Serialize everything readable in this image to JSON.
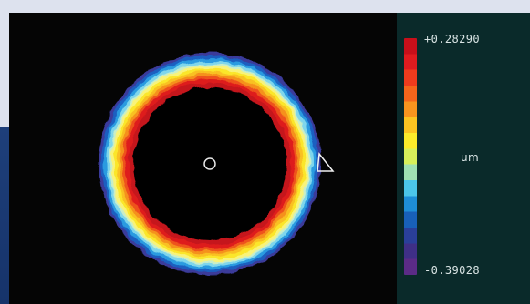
{
  "measurement_view": {
    "center_marker_icon": "circle-outline-icon",
    "edge_marker_icon": "triangle-outline-icon"
  },
  "color_scale": {
    "max_label": "+0.28290",
    "unit_label": "um",
    "min_label": "-0.39028",
    "colors": [
      "#c80f1a",
      "#e01b1f",
      "#ef3b1d",
      "#f5651b",
      "#f8941e",
      "#fbc421",
      "#fbeb2a",
      "#d7ef5a",
      "#9fe0b3",
      "#4bc6e9",
      "#1e8ed6",
      "#1860b8",
      "#2a3f99",
      "#3f2f86",
      "#5b2b86"
    ]
  }
}
